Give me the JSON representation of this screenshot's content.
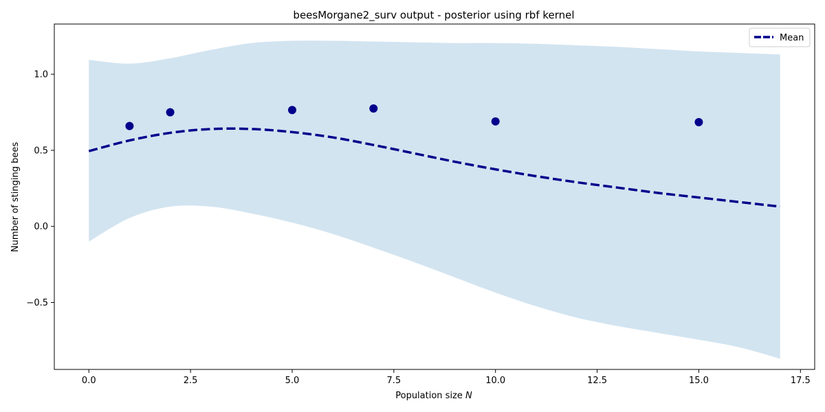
{
  "chart_data": {
    "type": "line",
    "title": "beesMorgane2_surv output - posterior using rbf kernel",
    "xlabel": "Population size",
    "xlabel_var": "N",
    "ylabel": "Number of stinging bees",
    "xlim": [
      -0.85,
      17.85
    ],
    "ylim": [
      -0.94,
      1.33
    ],
    "xticks": [
      0.0,
      2.5,
      5.0,
      7.5,
      10.0,
      12.5,
      15.0,
      17.5
    ],
    "xtick_labels": [
      "0.0",
      "2.5",
      "5.0",
      "7.5",
      "10.0",
      "12.5",
      "15.0",
      "17.5"
    ],
    "yticks": [
      -0.5,
      0.0,
      0.5,
      1.0
    ],
    "ytick_labels": [
      "−0.5",
      "0.0",
      "0.5",
      "1.0"
    ],
    "grid": false,
    "legend": {
      "position": "top-right",
      "entries": [
        "Mean"
      ]
    },
    "colors": {
      "mean": "#00008b",
      "points": "#00008b",
      "band": "#1f77b4",
      "band_opacity": 0.2
    },
    "observations": {
      "x": [
        1,
        2,
        5,
        7,
        10,
        15
      ],
      "y": [
        0.66,
        0.75,
        0.765,
        0.775,
        0.69,
        0.685
      ]
    },
    "mean": {
      "name": "Mean",
      "x": [
        0,
        1,
        2,
        3,
        4,
        5,
        6,
        7,
        8,
        9,
        10,
        11,
        12,
        13,
        14,
        15,
        16,
        17
      ],
      "y": [
        0.495,
        0.565,
        0.615,
        0.64,
        0.64,
        0.62,
        0.585,
        0.535,
        0.48,
        0.425,
        0.375,
        0.33,
        0.29,
        0.255,
        0.22,
        0.19,
        0.16,
        0.13
      ]
    },
    "band": {
      "x": [
        0,
        1,
        2,
        3,
        4,
        5,
        6,
        7,
        8,
        9,
        10,
        11,
        12,
        13,
        14,
        15,
        16,
        17
      ],
      "upper": [
        1.095,
        1.07,
        1.105,
        1.16,
        1.205,
        1.22,
        1.22,
        1.215,
        1.21,
        1.205,
        1.205,
        1.2,
        1.19,
        1.18,
        1.165,
        1.15,
        1.14,
        1.13
      ],
      "lower": [
        -0.1,
        0.055,
        0.13,
        0.13,
        0.085,
        0.025,
        -0.05,
        -0.14,
        -0.235,
        -0.335,
        -0.435,
        -0.525,
        -0.6,
        -0.655,
        -0.7,
        -0.745,
        -0.795,
        -0.87
      ]
    }
  }
}
